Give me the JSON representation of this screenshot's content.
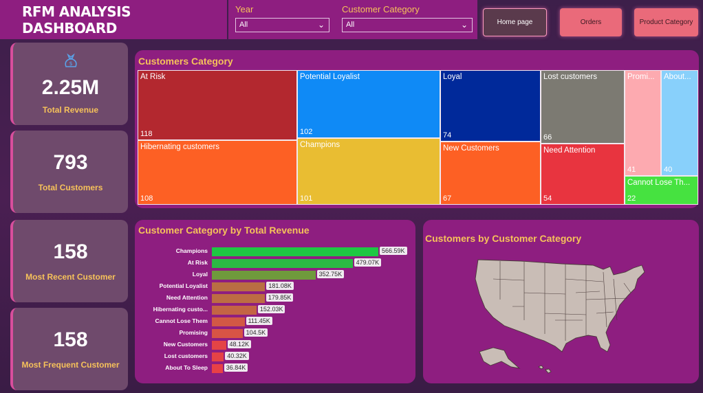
{
  "header": {
    "title": "RFM ANALYSIS DASHBOARD",
    "filters": [
      {
        "label": "Year",
        "value": "All"
      },
      {
        "label": "Customer Category",
        "value": "All"
      }
    ],
    "nav": {
      "home": "Home page",
      "orders": "Orders",
      "product": "Product Category"
    }
  },
  "kpis": [
    {
      "value": "2.25M",
      "label": "Total Revenue",
      "icon": "money-bag-icon"
    },
    {
      "value": "793",
      "label": "Total Customers"
    },
    {
      "value": "158",
      "label": "Most Recent Customer"
    },
    {
      "value": "158",
      "label": "Most Frequent Customer"
    }
  ],
  "treemap": {
    "title": "Customers Category",
    "cells": [
      {
        "name": "At Risk",
        "count": "118",
        "color": "#b3282f"
      },
      {
        "name": "Hibernating customers",
        "count": "108",
        "color": "#fd6024"
      },
      {
        "name": "Potential Loyalist",
        "count": "102",
        "color": "#0f8af6"
      },
      {
        "name": "Champions",
        "count": "101",
        "color": "#e9bd32"
      },
      {
        "name": "Loyal",
        "count": "74",
        "color": "#00299a"
      },
      {
        "name": "New Customers",
        "count": "67",
        "color": "#fd6024"
      },
      {
        "name": "Lost customers",
        "count": "66",
        "color": "#7c7a72"
      },
      {
        "name": "Need Attention",
        "count": "54",
        "color": "#e8343f"
      },
      {
        "name": "Promi...",
        "count": "41",
        "color": "#fdaab0"
      },
      {
        "name": "About...",
        "count": "40",
        "color": "#88d0fb"
      },
      {
        "name": "Cannot Lose Th...",
        "count": "22",
        "color": "#46e240"
      }
    ]
  },
  "bar_chart": {
    "title": "Customer Category by Total Revenue",
    "rows": [
      {
        "label": "Champions",
        "value": 566.59,
        "display": "566.59K",
        "color": "#1ec743"
      },
      {
        "label": "At Risk",
        "value": 479.07,
        "display": "479.07K",
        "color": "#2bb944"
      },
      {
        "label": "Loyal",
        "value": 352.75,
        "display": "352.75K",
        "color": "#6f9a3c"
      },
      {
        "label": "Potential Loyalist",
        "value": 181.08,
        "display": "181.08K",
        "color": "#b96e43"
      },
      {
        "label": "Need Attention",
        "value": 179.85,
        "display": "179.85K",
        "color": "#bd6c43"
      },
      {
        "label": "Hibernating custo...",
        "value": 152.03,
        "display": "152.03K",
        "color": "#c46444"
      },
      {
        "label": "Cannot Lose Them",
        "value": 111.45,
        "display": "111.45K",
        "color": "#d25845"
      },
      {
        "label": "Promising",
        "value": 104.5,
        "display": "104.5K",
        "color": "#d85445"
      },
      {
        "label": "New Customers",
        "value": 48.12,
        "display": "48.12K",
        "color": "#e44446"
      },
      {
        "label": "Lost customers",
        "value": 40.32,
        "display": "40.32K",
        "color": "#e64246"
      },
      {
        "label": "About To Sleep",
        "value": 36.84,
        "display": "36.84K",
        "color": "#e84046"
      }
    ]
  },
  "map": {
    "title": "Customers by Customer Category"
  },
  "chart_data": {
    "type": "bar",
    "title": "Customer Category by Total Revenue",
    "categories": [
      "Champions",
      "At Risk",
      "Loyal",
      "Potential Loyalist",
      "Need Attention",
      "Hibernating custo...",
      "Cannot Lose Them",
      "Promising",
      "New Customers",
      "Lost customers",
      "About To Sleep"
    ],
    "values": [
      566.59,
      479.07,
      352.75,
      181.08,
      179.85,
      152.03,
      111.45,
      104.5,
      48.12,
      40.32,
      36.84
    ],
    "units": "K"
  }
}
